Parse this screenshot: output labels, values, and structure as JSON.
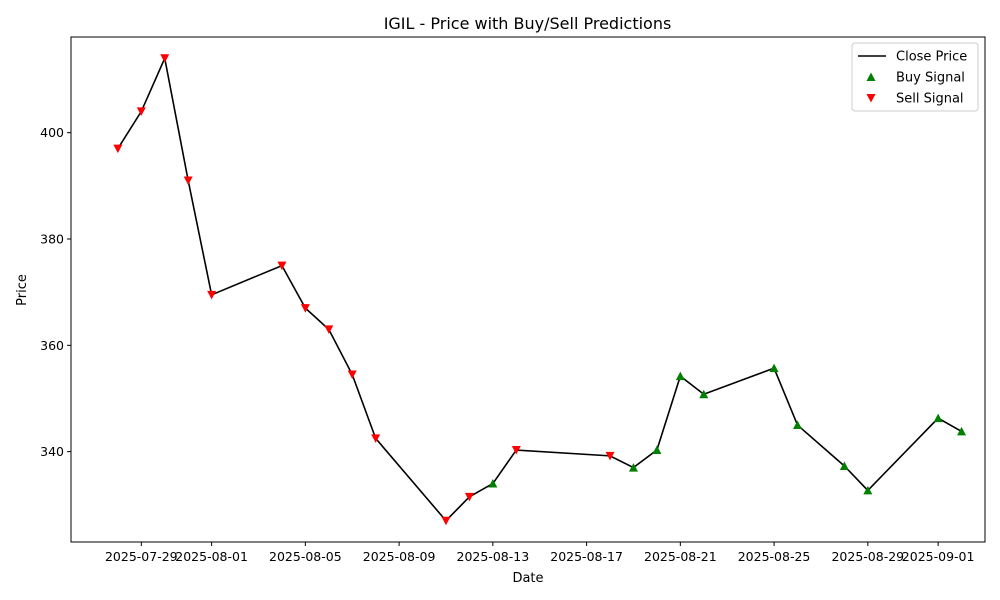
{
  "chart_data": {
    "type": "line",
    "title": "IGIL - Price with Buy/Sell Predictions",
    "xlabel": "Date",
    "ylabel": "Price",
    "xlim": [
      "2025-07-26",
      "2025-09-03"
    ],
    "ylim": [
      323,
      418
    ],
    "x_ticks": [
      "2025-07-29",
      "2025-08-01",
      "2025-08-05",
      "2025-08-09",
      "2025-08-13",
      "2025-08-17",
      "2025-08-21",
      "2025-08-25",
      "2025-08-29",
      "2025-09-01"
    ],
    "y_ticks": [
      340,
      360,
      380,
      400
    ],
    "grid": false,
    "legend": "top-right",
    "colors": {
      "line": "#000000",
      "buy": "#008000",
      "sell": "#ff0000"
    },
    "series": [
      {
        "name": "Close Price",
        "type": "line",
        "x": [
          "2025-07-28",
          "2025-07-29",
          "2025-07-30",
          "2025-07-31",
          "2025-08-01",
          "2025-08-04",
          "2025-08-05",
          "2025-08-06",
          "2025-08-07",
          "2025-08-08",
          "2025-08-11",
          "2025-08-12",
          "2025-08-13",
          "2025-08-14",
          "2025-08-18",
          "2025-08-19",
          "2025-08-20",
          "2025-08-21",
          "2025-08-22",
          "2025-08-25",
          "2025-08-26",
          "2025-08-28",
          "2025-08-29",
          "2025-09-01",
          "2025-09-02"
        ],
        "y": [
          397,
          404,
          414,
          391,
          369.5,
          375,
          367,
          363,
          354.5,
          342.5,
          327,
          331.5,
          334,
          340.3,
          339.2,
          337,
          340.3,
          354.2,
          350.8,
          355.7,
          345,
          337.3,
          332.7,
          346.3,
          343.8
        ]
      },
      {
        "name": "Buy Signal",
        "type": "scatter",
        "marker": "triangle-up",
        "x": [
          "2025-08-13",
          "2025-08-19",
          "2025-08-20",
          "2025-08-21",
          "2025-08-22",
          "2025-08-25",
          "2025-08-26",
          "2025-08-28",
          "2025-08-29",
          "2025-09-01",
          "2025-09-02"
        ],
        "y": [
          334,
          337,
          340.3,
          354.2,
          350.8,
          355.7,
          345,
          337.3,
          332.7,
          346.3,
          343.8
        ]
      },
      {
        "name": "Sell Signal",
        "type": "scatter",
        "marker": "triangle-down",
        "x": [
          "2025-07-28",
          "2025-07-29",
          "2025-07-30",
          "2025-07-31",
          "2025-08-01",
          "2025-08-04",
          "2025-08-05",
          "2025-08-06",
          "2025-08-07",
          "2025-08-08",
          "2025-08-11",
          "2025-08-12",
          "2025-08-14",
          "2025-08-18"
        ],
        "y": [
          397,
          404,
          414,
          391,
          369.5,
          375,
          367,
          363,
          354.5,
          342.5,
          327,
          331.5,
          340.3,
          339.2
        ]
      }
    ]
  }
}
